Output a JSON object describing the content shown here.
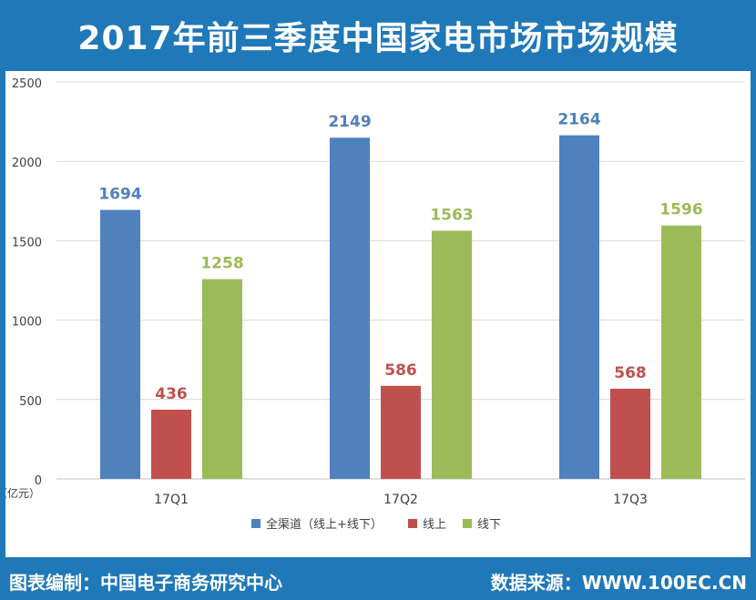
{
  "title": "2017年前三季度中国家电市场市场规模",
  "footer": {
    "source_label": "图表编制：中国电子商务研究中心",
    "data_label": "数据来源：WWW.100EC.CN"
  },
  "chart_data": {
    "type": "bar",
    "categories": [
      "17Q1",
      "17Q2",
      "17Q3"
    ],
    "series": [
      {
        "name": "全渠道（线上+线下）",
        "values": [
          1694,
          2149,
          2164
        ],
        "color": "#4f81bd"
      },
      {
        "name": "线上",
        "values": [
          436,
          586,
          568
        ],
        "color": "#c0504d"
      },
      {
        "name": "线下",
        "values": [
          1258,
          1563,
          1596
        ],
        "color": "#9bbb59"
      }
    ],
    "ylim": [
      0,
      2500
    ],
    "yticks": [
      0,
      500,
      1000,
      1500,
      2000,
      2500
    ],
    "ylabel": "（亿元）",
    "xlabel": "",
    "grid": true,
    "legend_position": "bottom"
  }
}
